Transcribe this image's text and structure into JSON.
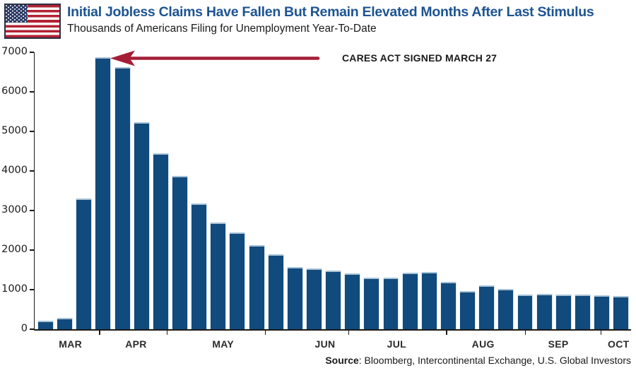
{
  "header": {
    "title": "Initial Jobless Claims Have Fallen But Remain Elevated Months After Last Stimulus",
    "subtitle": "Thousands of Americans Filing for Unemployment Year-To-Date",
    "flag_icon": "us-flag-icon"
  },
  "annotation": {
    "label": "CARES ACT SIGNED MARCH 27"
  },
  "footer": {
    "source_label": "Source",
    "source_text": ": Bloomberg, Intercontinental Exchange, U.S. Global Investors"
  },
  "colors": {
    "bar": "#114A7D",
    "title": "#1D5493",
    "arrow": "#A41E36",
    "flag_red": "#B22334",
    "flag_blue": "#2B3A64",
    "flag_border": "#2D3142",
    "axis": "#1A1A1A"
  },
  "chart_data": {
    "type": "bar",
    "title": "Initial Jobless Claims Have Fallen But Remain Elevated Months After Last Stimulus",
    "subtitle": "Thousands of Americans Filing for Unemployment Year-To-Date",
    "unit": "thousands of claims",
    "ylim": [
      0,
      7000
    ],
    "ytick_step": 1000,
    "ytick_labels": [
      "0",
      "1000",
      "2000",
      "3000",
      "4000",
      "5000",
      "6000",
      "7000"
    ],
    "grid": false,
    "legend": null,
    "x_month_labels": [
      "MAR",
      "APR",
      "MAY",
      "JUN",
      "JUL",
      "AUG",
      "SEP",
      "OCT"
    ],
    "bars_per_month": [
      3,
      4,
      5,
      4,
      5,
      4,
      4,
      2
    ],
    "values": [
      210,
      280,
      3310,
      6870,
      6620,
      5240,
      4440,
      3870,
      3180,
      2690,
      2450,
      2120,
      1900,
      1570,
      1540,
      1480,
      1410,
      1310,
      1310,
      1420,
      1440,
      1190,
      970,
      1100,
      1010,
      880,
      890,
      870,
      870,
      850,
      840
    ],
    "annotation": {
      "text": "CARES ACT SIGNED MARCH 27",
      "points_to": "peak bar"
    }
  }
}
